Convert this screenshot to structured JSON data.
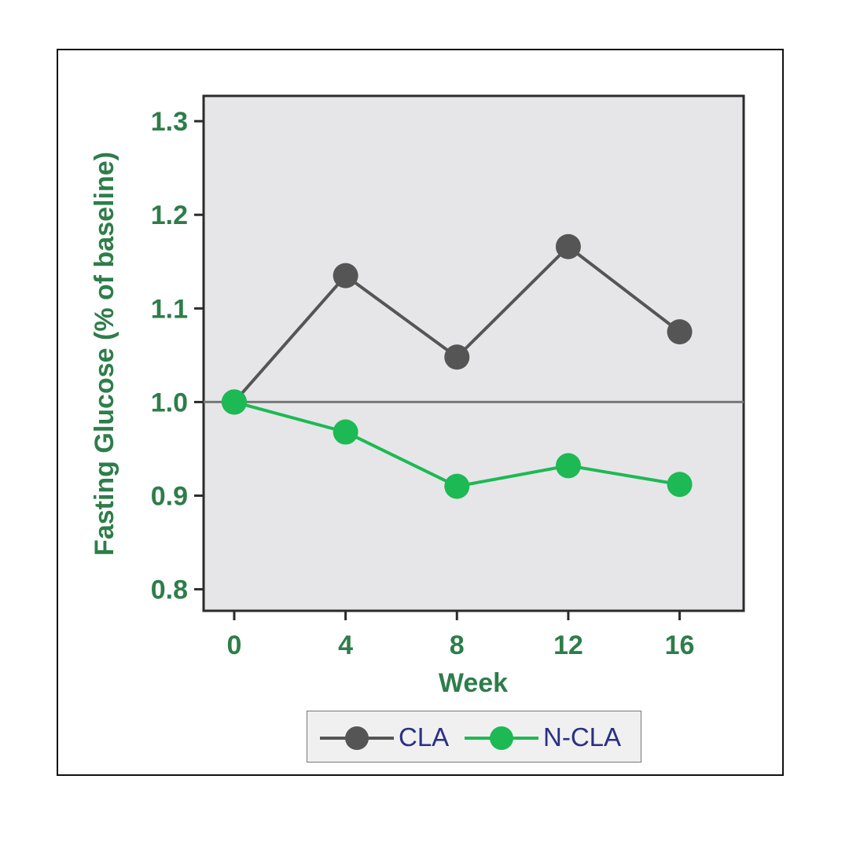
{
  "chart_data": {
    "type": "line",
    "xlabel": "Week",
    "ylabel": "Fasting Glucose (% of baseline)",
    "x": [
      0,
      4,
      8,
      12,
      16
    ],
    "xticks": [
      "0",
      "4",
      "8",
      "12",
      "16"
    ],
    "yticks": [
      "0.8",
      "0.9",
      "1.0",
      "1.1",
      "1.2",
      "1.3"
    ],
    "ylim": [
      0.777,
      1.327
    ],
    "xlim": [
      -1.1,
      18.3
    ],
    "reference_line": 1.0,
    "grid": false,
    "legend_position": "bottom-center",
    "colors": {
      "axis_text": "#2e7d4a",
      "legend_text": "#2a2f86",
      "panel_bg": "#e6e6e8"
    },
    "series": [
      {
        "name": "CLA",
        "color": "#555555",
        "values": [
          1.0,
          1.135,
          1.048,
          1.166,
          1.075
        ]
      },
      {
        "name": "N-CLA",
        "color": "#1db954",
        "values": [
          1.0,
          0.968,
          0.91,
          0.932,
          0.912
        ]
      }
    ]
  }
}
